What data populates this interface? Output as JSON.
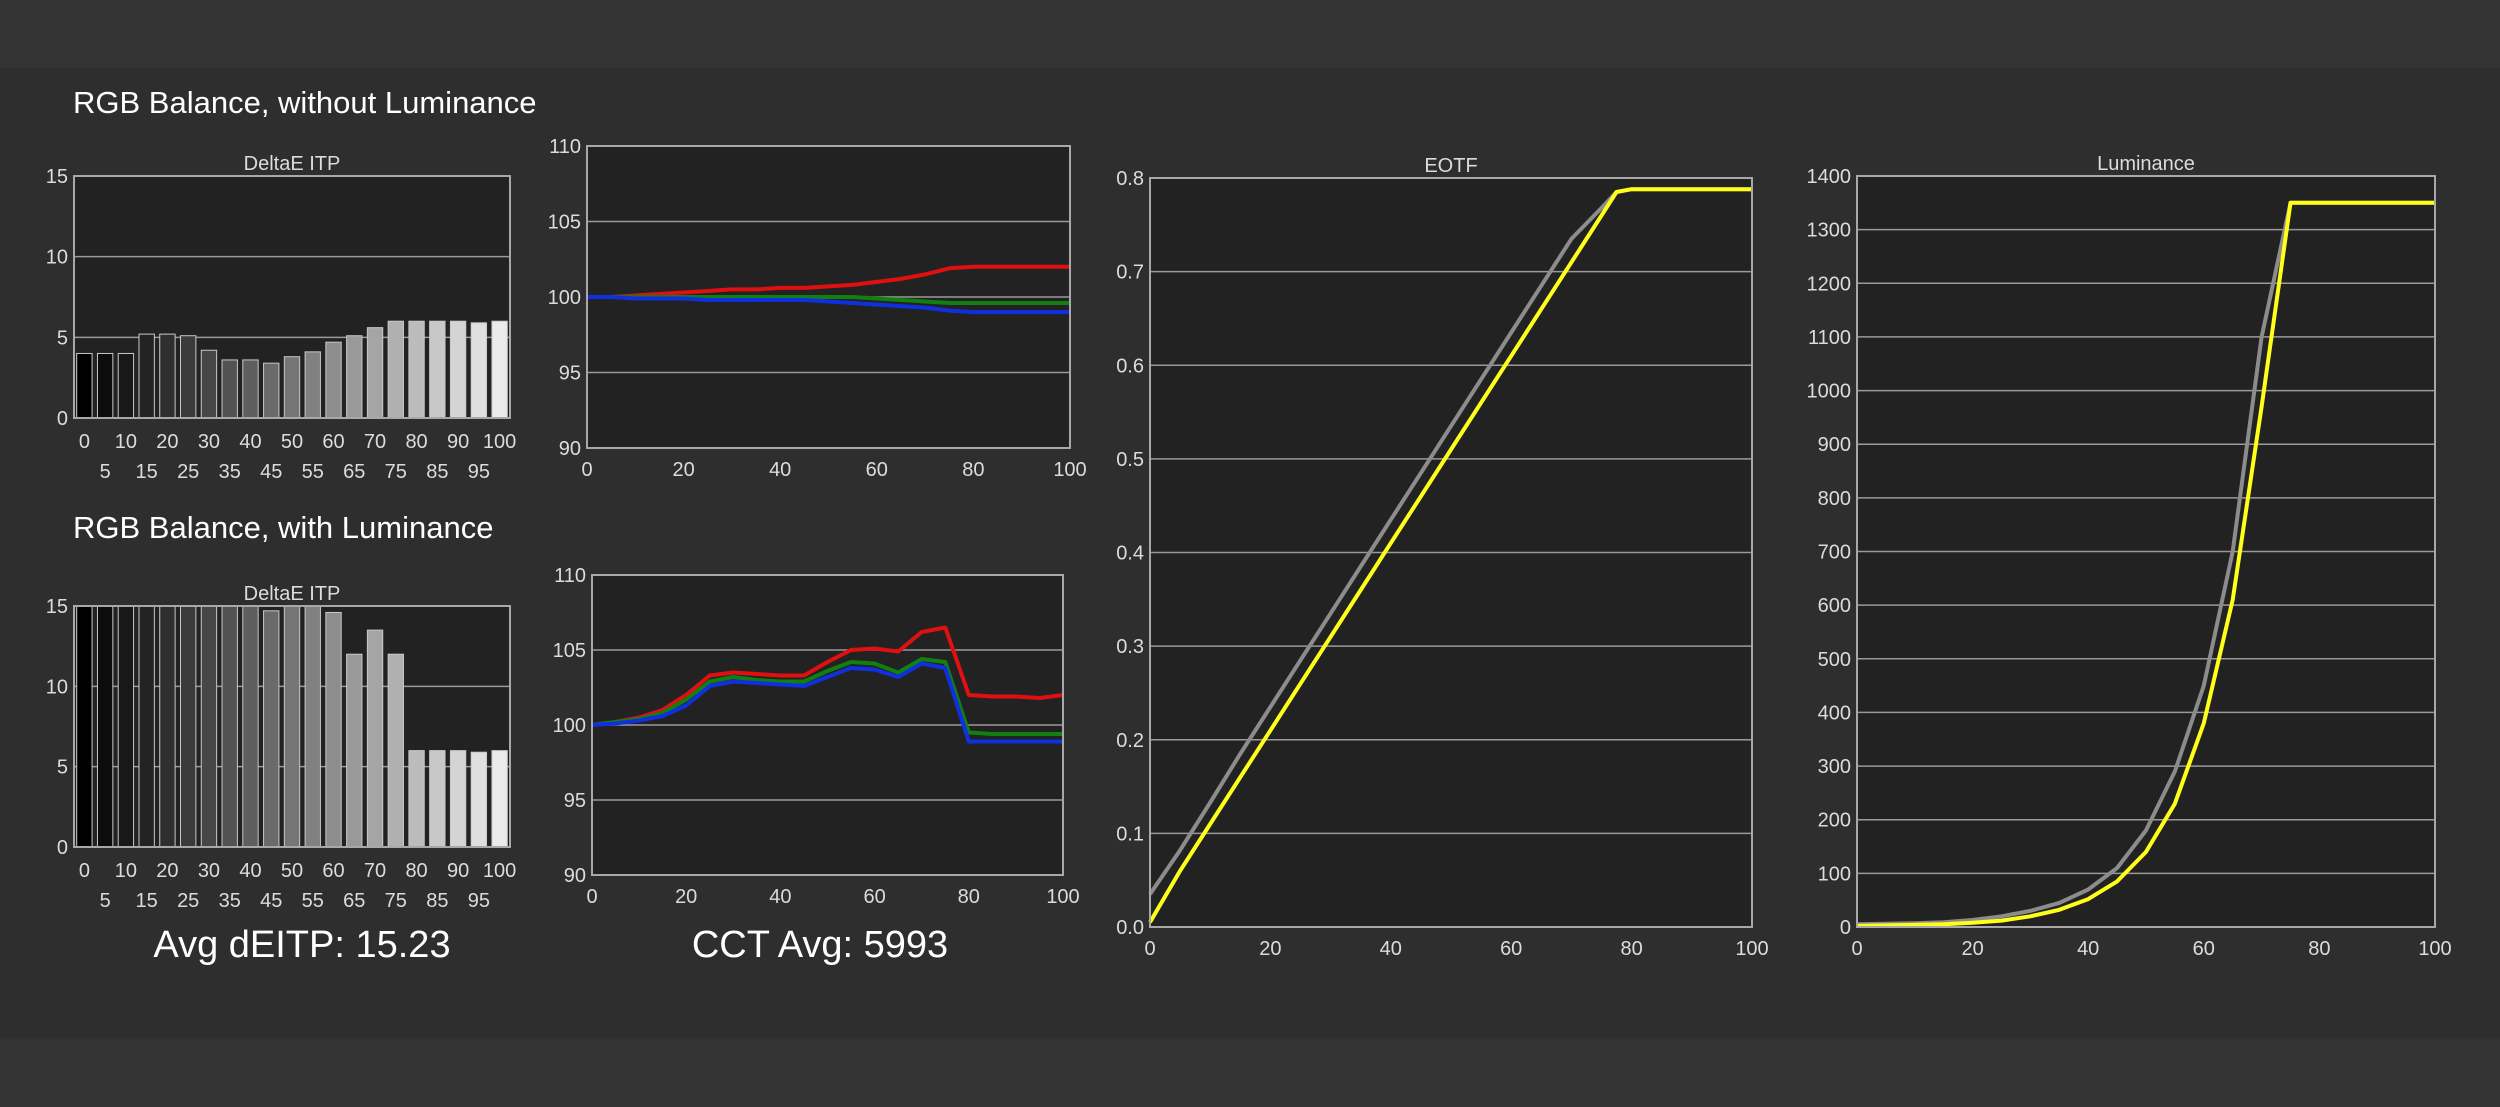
{
  "section_top": "RGB Balance, without Luminance",
  "section_bottom": "RGB Balance, with Luminance",
  "avg_deitp": "Avg dEITP: 15.23",
  "cct_avg": "CCT Avg: 5993",
  "colors": {
    "red": "#e01010",
    "green": "#108010",
    "blue": "#1030e0",
    "gray": "#8c8c8c",
    "yellow": "#ffff1a",
    "grid": "#9a9a9a",
    "plot_bg": "#222222",
    "text": "#ffffff",
    "tick": "#dcdcdc"
  },
  "chart_data": [
    {
      "id": "deltae_top",
      "type": "bar",
      "title": "DeltaE ITP",
      "xlabel": "",
      "ylabel": "",
      "categories": [
        "0",
        "5",
        "10",
        "15",
        "20",
        "25",
        "30",
        "35",
        "40",
        "45",
        "50",
        "55",
        "60",
        "65",
        "70",
        "75",
        "80",
        "85",
        "90",
        "95",
        "100"
      ],
      "values": [
        4,
        4,
        4,
        5.2,
        5.2,
        5.1,
        4.2,
        3.6,
        3.6,
        3.4,
        3.8,
        4.1,
        4.7,
        5.1,
        5.6,
        6,
        6,
        6,
        6,
        5.9,
        6
      ],
      "ylim": [
        0,
        15
      ],
      "yticks": [
        0,
        5,
        10,
        15
      ],
      "grid": true
    },
    {
      "id": "rgb_top",
      "type": "line",
      "title": "",
      "xlabel": "",
      "ylabel": "",
      "xlim": [
        0,
        100
      ],
      "ylim": [
        90,
        110
      ],
      "xticks": [
        0,
        20,
        40,
        60,
        80,
        100
      ],
      "yticks": [
        90,
        95,
        100,
        105,
        110
      ],
      "grid": true,
      "x": [
        0,
        5,
        10,
        15,
        20,
        25,
        30,
        35,
        40,
        45,
        50,
        55,
        60,
        65,
        70,
        75,
        80,
        85,
        90,
        95,
        100
      ],
      "series": [
        {
          "color": "red",
          "values": [
            100,
            100,
            100.1,
            100.2,
            100.3,
            100.4,
            100.5,
            100.5,
            100.6,
            100.6,
            100.7,
            100.8,
            101,
            101.2,
            101.5,
            101.9,
            102,
            102,
            102,
            102,
            102
          ]
        },
        {
          "color": "green",
          "values": [
            100,
            100,
            100,
            100,
            100,
            100,
            100,
            100,
            100,
            100,
            100,
            100,
            99.9,
            99.8,
            99.7,
            99.6,
            99.6,
            99.6,
            99.6,
            99.6,
            99.6
          ]
        },
        {
          "color": "blue",
          "values": [
            100,
            100,
            99.9,
            99.9,
            99.9,
            99.8,
            99.8,
            99.8,
            99.8,
            99.8,
            99.7,
            99.6,
            99.5,
            99.4,
            99.3,
            99.1,
            99,
            99,
            99,
            99,
            99
          ]
        }
      ]
    },
    {
      "id": "deltae_bottom",
      "type": "bar",
      "title": "DeltaE ITP",
      "xlabel": "",
      "ylabel": "",
      "categories": [
        "0",
        "5",
        "10",
        "15",
        "20",
        "25",
        "30",
        "35",
        "40",
        "45",
        "50",
        "55",
        "60",
        "65",
        "70",
        "75",
        "80",
        "85",
        "90",
        "95",
        "100"
      ],
      "values": [
        15,
        15,
        15,
        15,
        15,
        15,
        15,
        15,
        15,
        14.7,
        15,
        15,
        14.6,
        12,
        13.5,
        12,
        6,
        6,
        6,
        5.9,
        6
      ],
      "ylim": [
        0,
        15
      ],
      "yticks": [
        0,
        5,
        10,
        15
      ],
      "grid": true
    },
    {
      "id": "rgb_bottom",
      "type": "line",
      "title": "",
      "xlabel": "",
      "ylabel": "",
      "xlim": [
        0,
        100
      ],
      "ylim": [
        90,
        110
      ],
      "xticks": [
        0,
        20,
        40,
        60,
        80,
        100
      ],
      "yticks": [
        90,
        95,
        100,
        105,
        110
      ],
      "grid": true,
      "x": [
        0,
        5,
        10,
        15,
        20,
        25,
        30,
        35,
        40,
        45,
        50,
        55,
        60,
        65,
        70,
        75,
        80,
        85,
        90,
        95,
        100
      ],
      "series": [
        {
          "color": "red",
          "values": [
            100,
            100.2,
            100.5,
            101,
            102,
            103.3,
            103.5,
            103.4,
            103.3,
            103.3,
            104.2,
            105,
            105.1,
            104.9,
            106.2,
            106.5,
            102,
            101.9,
            101.9,
            101.8,
            102
          ]
        },
        {
          "color": "green",
          "values": [
            100,
            100.2,
            100.4,
            100.8,
            101.7,
            102.9,
            103.2,
            103,
            102.9,
            102.9,
            103.6,
            104.2,
            104.1,
            103.5,
            104.4,
            104.2,
            99.5,
            99.4,
            99.4,
            99.4,
            99.4
          ]
        },
        {
          "color": "blue",
          "values": [
            100,
            100.1,
            100.3,
            100.6,
            101.3,
            102.6,
            102.9,
            102.8,
            102.7,
            102.6,
            103.2,
            103.8,
            103.7,
            103.2,
            104.1,
            103.8,
            98.9,
            98.9,
            98.9,
            98.9,
            98.9
          ]
        }
      ]
    },
    {
      "id": "eotf",
      "type": "line",
      "title": "EOTF",
      "xlabel": "",
      "ylabel": "",
      "xlim": [
        0,
        100
      ],
      "ylim": [
        0,
        0.8
      ],
      "xticks": [
        0,
        20,
        40,
        60,
        80,
        100
      ],
      "yticks": [
        0,
        0.1,
        0.2,
        0.3,
        0.4,
        0.5,
        0.6,
        0.7,
        0.8
      ],
      "yfmt": 1,
      "grid": true,
      "x": [
        0,
        5,
        10,
        15,
        20,
        25,
        30,
        35,
        40,
        45,
        50,
        55,
        60,
        65,
        70,
        75,
        77.5,
        80,
        85,
        90,
        95,
        100
      ],
      "series": [
        {
          "color": "gray",
          "values": [
            0.035,
            0.082,
            0.133,
            0.185,
            0.235,
            0.285,
            0.335,
            0.385,
            0.435,
            0.485,
            0.535,
            0.585,
            0.635,
            0.685,
            0.735,
            0.768,
            0.785,
            0.788,
            0.788,
            0.788,
            0.788,
            0.788
          ]
        },
        {
          "color": "yellow",
          "values": [
            0.005,
            0.06,
            0.11,
            0.16,
            0.21,
            0.26,
            0.31,
            0.36,
            0.41,
            0.46,
            0.51,
            0.56,
            0.61,
            0.66,
            0.71,
            0.76,
            0.785,
            0.788,
            0.788,
            0.788,
            0.788,
            0.788
          ]
        }
      ]
    },
    {
      "id": "luminance",
      "type": "line",
      "title": "Luminance",
      "xlabel": "",
      "ylabel": "",
      "xlim": [
        0,
        100
      ],
      "ylim": [
        0,
        1400
      ],
      "xticks": [
        0,
        20,
        40,
        60,
        80,
        100
      ],
      "yticks": [
        0,
        100,
        200,
        300,
        400,
        500,
        600,
        700,
        800,
        900,
        1000,
        1100,
        1200,
        1300,
        1400
      ],
      "grid": true,
      "x": [
        0,
        5,
        10,
        15,
        20,
        25,
        30,
        35,
        40,
        45,
        50,
        55,
        60,
        65,
        70,
        75,
        80,
        85,
        90,
        95,
        100
      ],
      "series": [
        {
          "color": "gray",
          "values": [
            5,
            6,
            7,
            9,
            13,
            20,
            30,
            45,
            70,
            110,
            180,
            290,
            450,
            700,
            1100,
            1350,
            1350,
            1350,
            1350,
            1350,
            1350
          ]
        },
        {
          "color": "yellow",
          "values": [
            2,
            3,
            4,
            5,
            8,
            12,
            20,
            32,
            52,
            85,
            140,
            230,
            380,
            610,
            970,
            1350,
            1350,
            1350,
            1350,
            1350,
            1350
          ]
        }
      ]
    }
  ]
}
